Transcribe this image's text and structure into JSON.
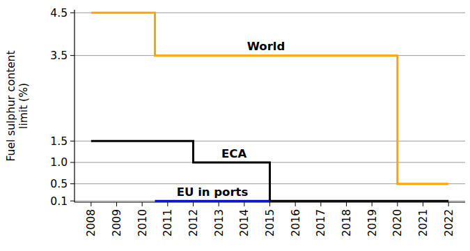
{
  "chart_data": {
    "type": "line",
    "y_label": "Fuel sulphur content\nlimit (%)",
    "xlim": [
      2007.35,
      2022.65
    ],
    "xticks": [
      2008,
      2009,
      2010,
      2011,
      2012,
      2013,
      2014,
      2015,
      2016,
      2017,
      2018,
      2019,
      2020,
      2021,
      2022
    ],
    "ylim": [
      0.07,
      4.57
    ],
    "yticks": [
      0.1,
      0.5,
      {
        "value": 1.0,
        "label": "1.0"
      },
      1.5,
      3.5,
      4.5
    ],
    "grid": true,
    "series": [
      {
        "name": "World",
        "color": "#ffa500",
        "line_style": "step",
        "x": [
          2008,
          2010.5,
          2020,
          2022
        ],
        "values": [
          4.5,
          3.5,
          0.5,
          0.5
        ],
        "label_at": [
          2014.85,
          3.62
        ]
      },
      {
        "name": "ECA",
        "color": "#000000",
        "line_style": "step",
        "x": [
          2008,
          2012,
          2015,
          2022
        ],
        "values": [
          1.5,
          1.0,
          0.1,
          0.1
        ],
        "label_at": [
          2013.6,
          1.12
        ]
      },
      {
        "name": "EU in ports",
        "color": "#0000ff",
        "line_style": "step",
        "x": [
          2010.5,
          2015
        ],
        "values": [
          0.1,
          0.1
        ],
        "label_at": [
          2012.75,
          0.22
        ]
      }
    ]
  }
}
